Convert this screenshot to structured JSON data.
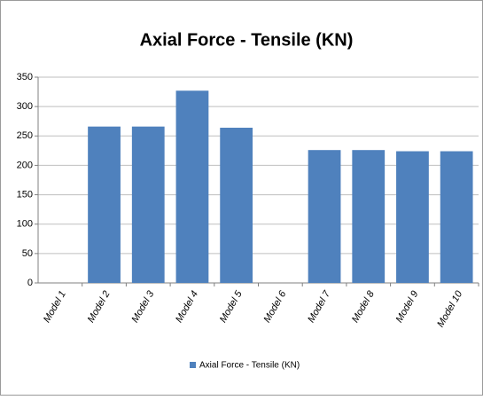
{
  "chart_data": {
    "type": "bar",
    "title": "Axial Force - Tensile (KN)",
    "categories": [
      "Model 1",
      "Model 2",
      "Model 3",
      "Model 4",
      "Model 5",
      "Model 6",
      "Model 7",
      "Model 8",
      "Model 9",
      "Model 10"
    ],
    "series": [
      {
        "name": "Axial Force - Tensile (KN)",
        "color": "#4f81bd",
        "values": [
          0,
          266,
          266,
          327,
          264,
          0,
          226,
          226,
          224,
          224
        ]
      }
    ],
    "ylim": [
      0,
      350
    ],
    "yticks": [
      0,
      50,
      100,
      150,
      200,
      250,
      300,
      350
    ],
    "grid": true,
    "legend": "bottom"
  }
}
